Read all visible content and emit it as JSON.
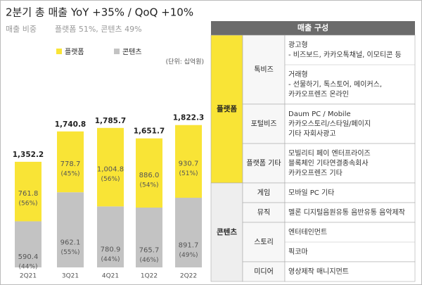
{
  "header": {
    "title": "2분기 총 매출  YoY +35% / QoQ +10%",
    "subtitle_label": "매출 비중",
    "subtitle": "플랫폼 51%, 콘텐츠 49%"
  },
  "chart_data": {
    "type": "stacked-bar",
    "unit": "(단위: 십억원)",
    "categories": [
      "2Q21",
      "3Q21",
      "4Q21",
      "1Q22",
      "2Q22"
    ],
    "ylim": [
      0,
      2000
    ],
    "series": [
      {
        "name": "콘텐츠",
        "color": "#c3c3c3",
        "values": [
          590.4,
          962.1,
          780.9,
          765.7,
          891.7
        ],
        "share_labels": [
          "(44%)",
          "(55%)",
          "(44%)",
          "(46%)",
          "(49%)"
        ]
      },
      {
        "name": "플랫폼",
        "color": "#f9e436",
        "values": [
          761.8,
          778.7,
          1004.8,
          886.0,
          930.7
        ],
        "value_labels": [
          "761.8",
          "778.7",
          "1,004.8",
          "886.0",
          "930.7"
        ],
        "share_labels": [
          "(56%)",
          "(45%)",
          "(56%)",
          "(54%)",
          "(51%)"
        ]
      }
    ],
    "totals": [
      1352.2,
      1740.8,
      1785.7,
      1651.7,
      1822.3
    ],
    "total_labels": [
      "1,352.2",
      "1,740.8",
      "1,785.7",
      "1,651.7",
      "1,822.3"
    ]
  },
  "table": {
    "header": "매출 구성",
    "groups": [
      {
        "label": "플랫폼",
        "rows": [
          {
            "label": "톡비즈",
            "blocks": [
              [
                "광고형",
                "- 비즈보드, 카카오톡채널, 이모티콘 등"
              ],
              [
                "거래형",
                "- 선물하기, 톡스토어, 메이커스,",
                "카카오프렌즈 온라인"
              ]
            ]
          },
          {
            "label": "포털비즈",
            "blocks": [
              [
                "Daum PC / Mobile",
                "카카오스토리/스타일/페이지",
                "기타 자회사광고"
              ]
            ]
          },
          {
            "label": "플랫폼 기타",
            "blocks": [
              [
                "모빌리티   페이   엔터프라이즈",
                "블록체인   기타연결종속회사",
                "카카오프렌즈 기타"
              ]
            ]
          }
        ]
      },
      {
        "label": "콘텐츠",
        "rows": [
          {
            "label": "게임",
            "blocks": [
              [
                "모바일    PC    기타"
              ]
            ]
          },
          {
            "label": "뮤직",
            "blocks": [
              [
                "멜론  디지털음원유통  음반유통  음악제작"
              ]
            ]
          },
          {
            "label": "스토리",
            "blocks": [
              [
                "엔터테인먼트"
              ],
              [
                "픽코마"
              ]
            ]
          },
          {
            "label": "미디어",
            "blocks": [
              [
                "영상제작    매니지먼트"
              ]
            ]
          }
        ]
      }
    ]
  }
}
